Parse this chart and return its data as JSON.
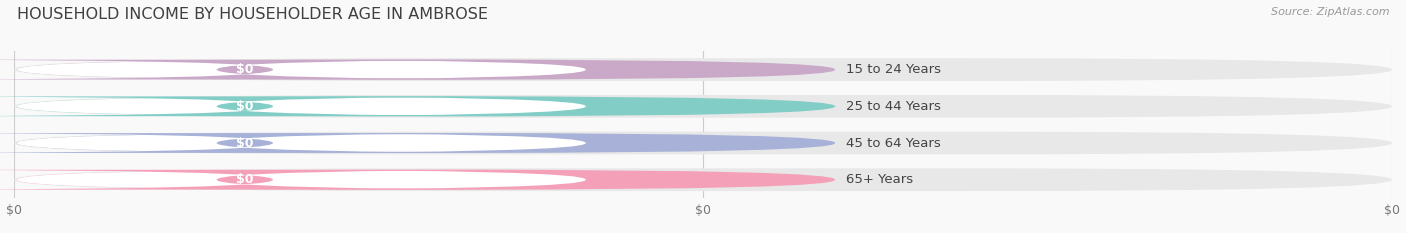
{
  "title": "HOUSEHOLD INCOME BY HOUSEHOLDER AGE IN AMBROSE",
  "source": "Source: ZipAtlas.com",
  "categories": [
    "15 to 24 Years",
    "25 to 44 Years",
    "45 to 64 Years",
    "65+ Years"
  ],
  "values": [
    0,
    0,
    0,
    0
  ],
  "bar_colors": [
    "#c9a8c8",
    "#82cdc6",
    "#a8b2d8",
    "#f4a0b8"
  ],
  "bar_track_color": "#e8e8e8",
  "white_pill_color": "#ffffff",
  "label_color": "#444444",
  "title_color": "#404040",
  "source_color": "#999999",
  "background_color": "#f9f9f9",
  "figsize": [
    14.06,
    2.33
  ],
  "dpi": 100
}
